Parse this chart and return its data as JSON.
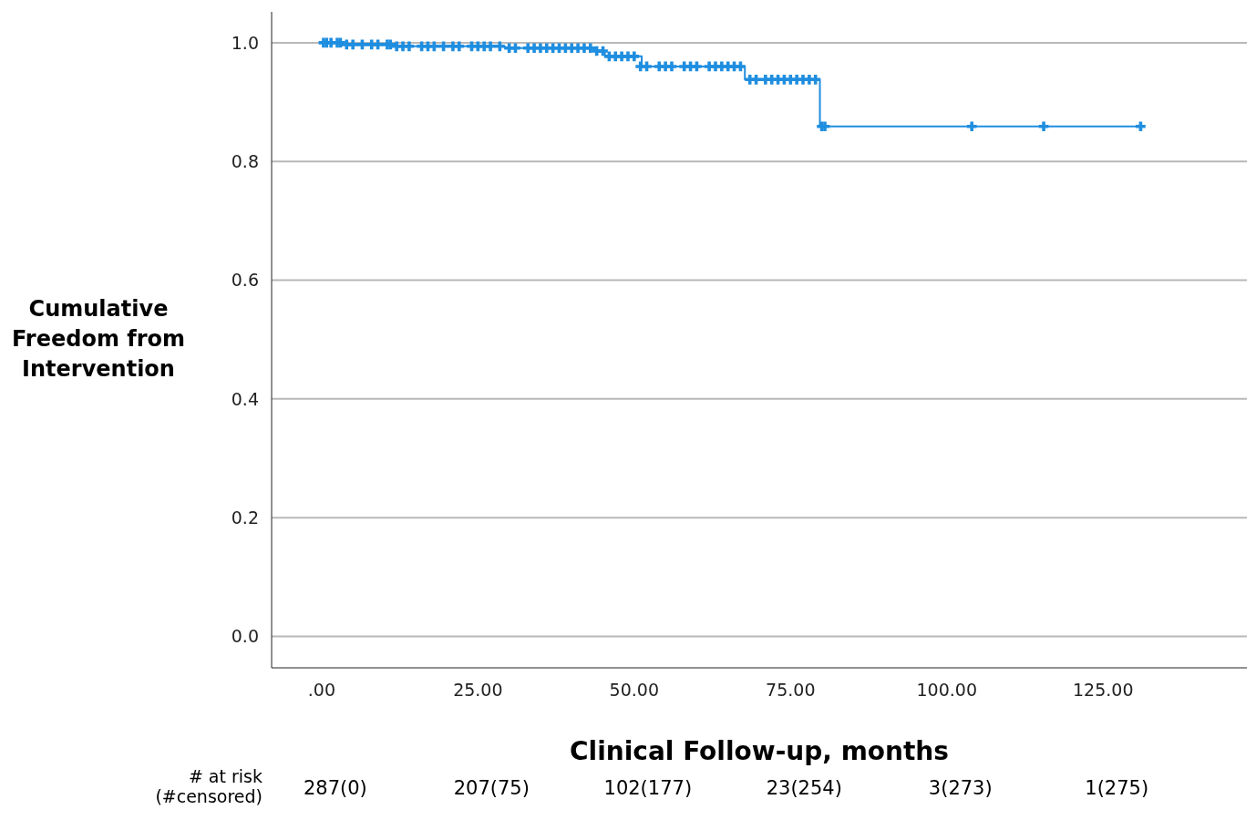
{
  "chart_data": {
    "type": "step",
    "xlabel": "Clinical Follow-up, months",
    "ylabel": "Cumulative Freedom from Intervention",
    "xlim": [
      -8,
      148
    ],
    "xticks": [
      {
        "value": 0,
        "label": ".00"
      },
      {
        "value": 25,
        "label": "25.00"
      },
      {
        "value": 50,
        "label": "50.00"
      },
      {
        "value": 75,
        "label": "75.00"
      },
      {
        "value": 100,
        "label": "100.00"
      },
      {
        "value": 125,
        "label": "125.00"
      }
    ],
    "ylim": [
      -0.053,
      1.052
    ],
    "yticks": [
      {
        "value": 0,
        "label": "0.0"
      },
      {
        "value": 0.2,
        "label": "0.2"
      },
      {
        "value": 0.4,
        "label": "0.4"
      },
      {
        "value": 0.6,
        "label": "0.6"
      },
      {
        "value": 0.8,
        "label": "0.8"
      },
      {
        "value": 1,
        "label": "1.0"
      }
    ],
    "grid": "y",
    "line_style": "solid",
    "series": [
      {
        "color": "#1f8ee0",
        "marker": "none",
        "x": [
          0,
          3.5,
          11.8,
          29.3,
          43.5,
          45.3,
          51.2,
          67.7,
          79.7,
          131
        ],
        "values": [
          1,
          0.997,
          0.994,
          0.991,
          0.986,
          0.977,
          0.96,
          0.938,
          0.859,
          0.859
        ]
      },
      {
        "type": "scatter",
        "color": "#1f8ee0",
        "marker": "cross",
        "x": [
          0.3,
          0.8,
          1.5,
          2.5,
          3,
          4,
          5,
          6.5,
          8,
          9,
          10.5,
          11,
          12,
          13,
          14,
          16,
          17,
          18,
          19.5,
          21,
          22,
          24,
          25,
          26,
          27,
          28.5,
          30,
          31,
          33,
          34,
          35,
          36,
          37,
          38,
          39,
          40,
          41,
          42,
          43,
          44,
          45,
          46,
          47,
          48,
          49,
          50,
          51,
          52,
          54,
          55,
          56,
          58,
          59,
          60,
          62,
          63,
          64,
          65,
          66,
          67,
          68.5,
          69.5,
          71,
          72,
          73,
          74,
          75,
          76,
          77,
          78,
          79,
          80,
          80.5,
          104,
          115.5,
          131
        ],
        "values": [
          1,
          1,
          1,
          1,
          1,
          0.997,
          0.997,
          0.997,
          0.997,
          0.997,
          0.997,
          0.997,
          0.994,
          0.994,
          0.994,
          0.994,
          0.994,
          0.994,
          0.994,
          0.994,
          0.994,
          0.994,
          0.994,
          0.994,
          0.994,
          0.994,
          0.991,
          0.991,
          0.991,
          0.991,
          0.991,
          0.991,
          0.991,
          0.991,
          0.991,
          0.991,
          0.991,
          0.991,
          0.991,
          0.986,
          0.986,
          0.977,
          0.977,
          0.977,
          0.977,
          0.977,
          0.96,
          0.96,
          0.96,
          0.96,
          0.96,
          0.96,
          0.96,
          0.96,
          0.96,
          0.96,
          0.96,
          0.96,
          0.96,
          0.96,
          0.938,
          0.938,
          0.938,
          0.938,
          0.938,
          0.938,
          0.938,
          0.938,
          0.938,
          0.938,
          0.938,
          0.859,
          0.859,
          0.859,
          0.859,
          0.859
        ]
      }
    ],
    "annotations": [
      "# at risk\n(#censored)",
      "287(0)",
      "207(75)",
      "102(177)",
      "23(254)",
      "3(273)",
      "1(275)"
    ]
  }
}
